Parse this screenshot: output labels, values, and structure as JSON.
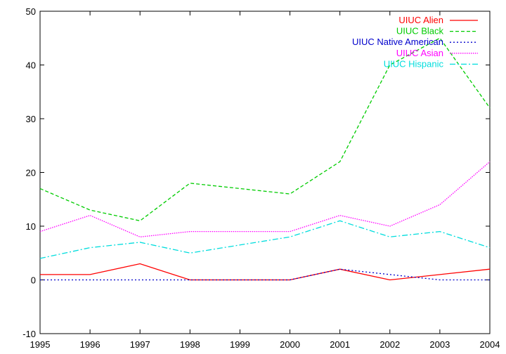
{
  "chart_data": {
    "type": "line",
    "title": "",
    "xlabel": "",
    "ylabel": "",
    "x": [
      1995,
      1996,
      1997,
      1998,
      1999,
      2000,
      2001,
      2002,
      2003,
      2004
    ],
    "xlim": [
      1995,
      2004
    ],
    "ylim": [
      -10,
      50
    ],
    "xticks": [
      "1995",
      "1996",
      "1997",
      "1998",
      "1999",
      "2000",
      "2001",
      "2002",
      "2003",
      "2004"
    ],
    "yticks": [
      "-10",
      "0",
      "10",
      "20",
      "30",
      "40",
      "50"
    ],
    "grid": false,
    "legend_position": "top-right",
    "series": [
      {
        "name": "UIUC Alien",
        "color": "#ff0000",
        "dash": "solid",
        "values": [
          1,
          1,
          3,
          0,
          0,
          0,
          2,
          0,
          1,
          2
        ]
      },
      {
        "name": "UIUC Black",
        "color": "#00cc00",
        "dash": "dashed",
        "values": [
          17,
          13,
          11,
          18,
          17,
          16,
          22,
          40,
          45,
          32
        ]
      },
      {
        "name": "UIUC Native American",
        "color": "#0000cc",
        "dash": "dotted",
        "values": [
          0,
          0,
          0,
          0,
          0,
          0,
          2,
          1,
          0,
          0
        ]
      },
      {
        "name": "UIUC Asian",
        "color": "#ff00ff",
        "dash": "finedot",
        "values": [
          9,
          12,
          8,
          9,
          9,
          9,
          12,
          10,
          14,
          22
        ]
      },
      {
        "name": "UIUC Hispanic",
        "color": "#00dddd",
        "dash": "dashdot",
        "values": [
          4,
          6,
          7,
          5,
          6.5,
          8,
          11,
          8,
          9,
          6
        ]
      }
    ]
  }
}
